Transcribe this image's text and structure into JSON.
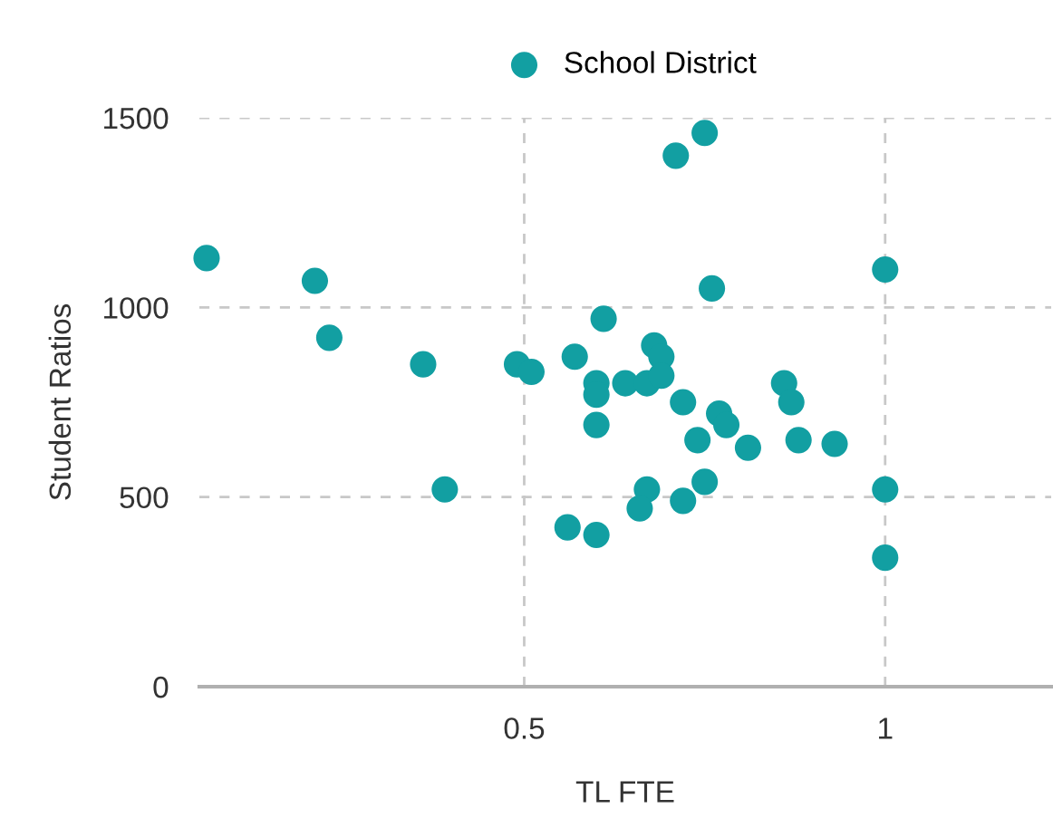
{
  "chart_data": {
    "type": "scatter",
    "xlabel": "TL FTE",
    "ylabel": "Student Ratios",
    "series": [
      {
        "name": "School District",
        "color": "#129fa2",
        "x": [
          0.06,
          0.21,
          0.23,
          0.36,
          0.39,
          0.49,
          0.51,
          0.56,
          0.6,
          0.57,
          0.61,
          0.6,
          0.6,
          0.6,
          0.64,
          0.68,
          0.69,
          0.67,
          0.69,
          0.72,
          0.71,
          0.75,
          0.76,
          0.77,
          0.78,
          0.74,
          0.81,
          0.86,
          0.87,
          0.88,
          0.93,
          1.0,
          1.0,
          1.0,
          0.67,
          0.66,
          0.72,
          0.75
        ],
        "values": [
          1130,
          1070,
          920,
          850,
          520,
          850,
          830,
          420,
          400,
          870,
          970,
          800,
          770,
          690,
          800,
          900,
          870,
          800,
          820,
          750,
          1400,
          1460,
          1050,
          720,
          690,
          650,
          630,
          800,
          750,
          650,
          640,
          1100,
          520,
          340,
          520,
          470,
          490,
          540
        ]
      }
    ],
    "xlim": [
      0.05,
      1.23
    ],
    "xticks": [
      0.5,
      1
    ],
    "ylim": [
      0,
      1500
    ],
    "yticks": [
      0,
      500,
      1000,
      1500
    ],
    "grid": true,
    "legend": "top",
    "marker": "circle"
  }
}
